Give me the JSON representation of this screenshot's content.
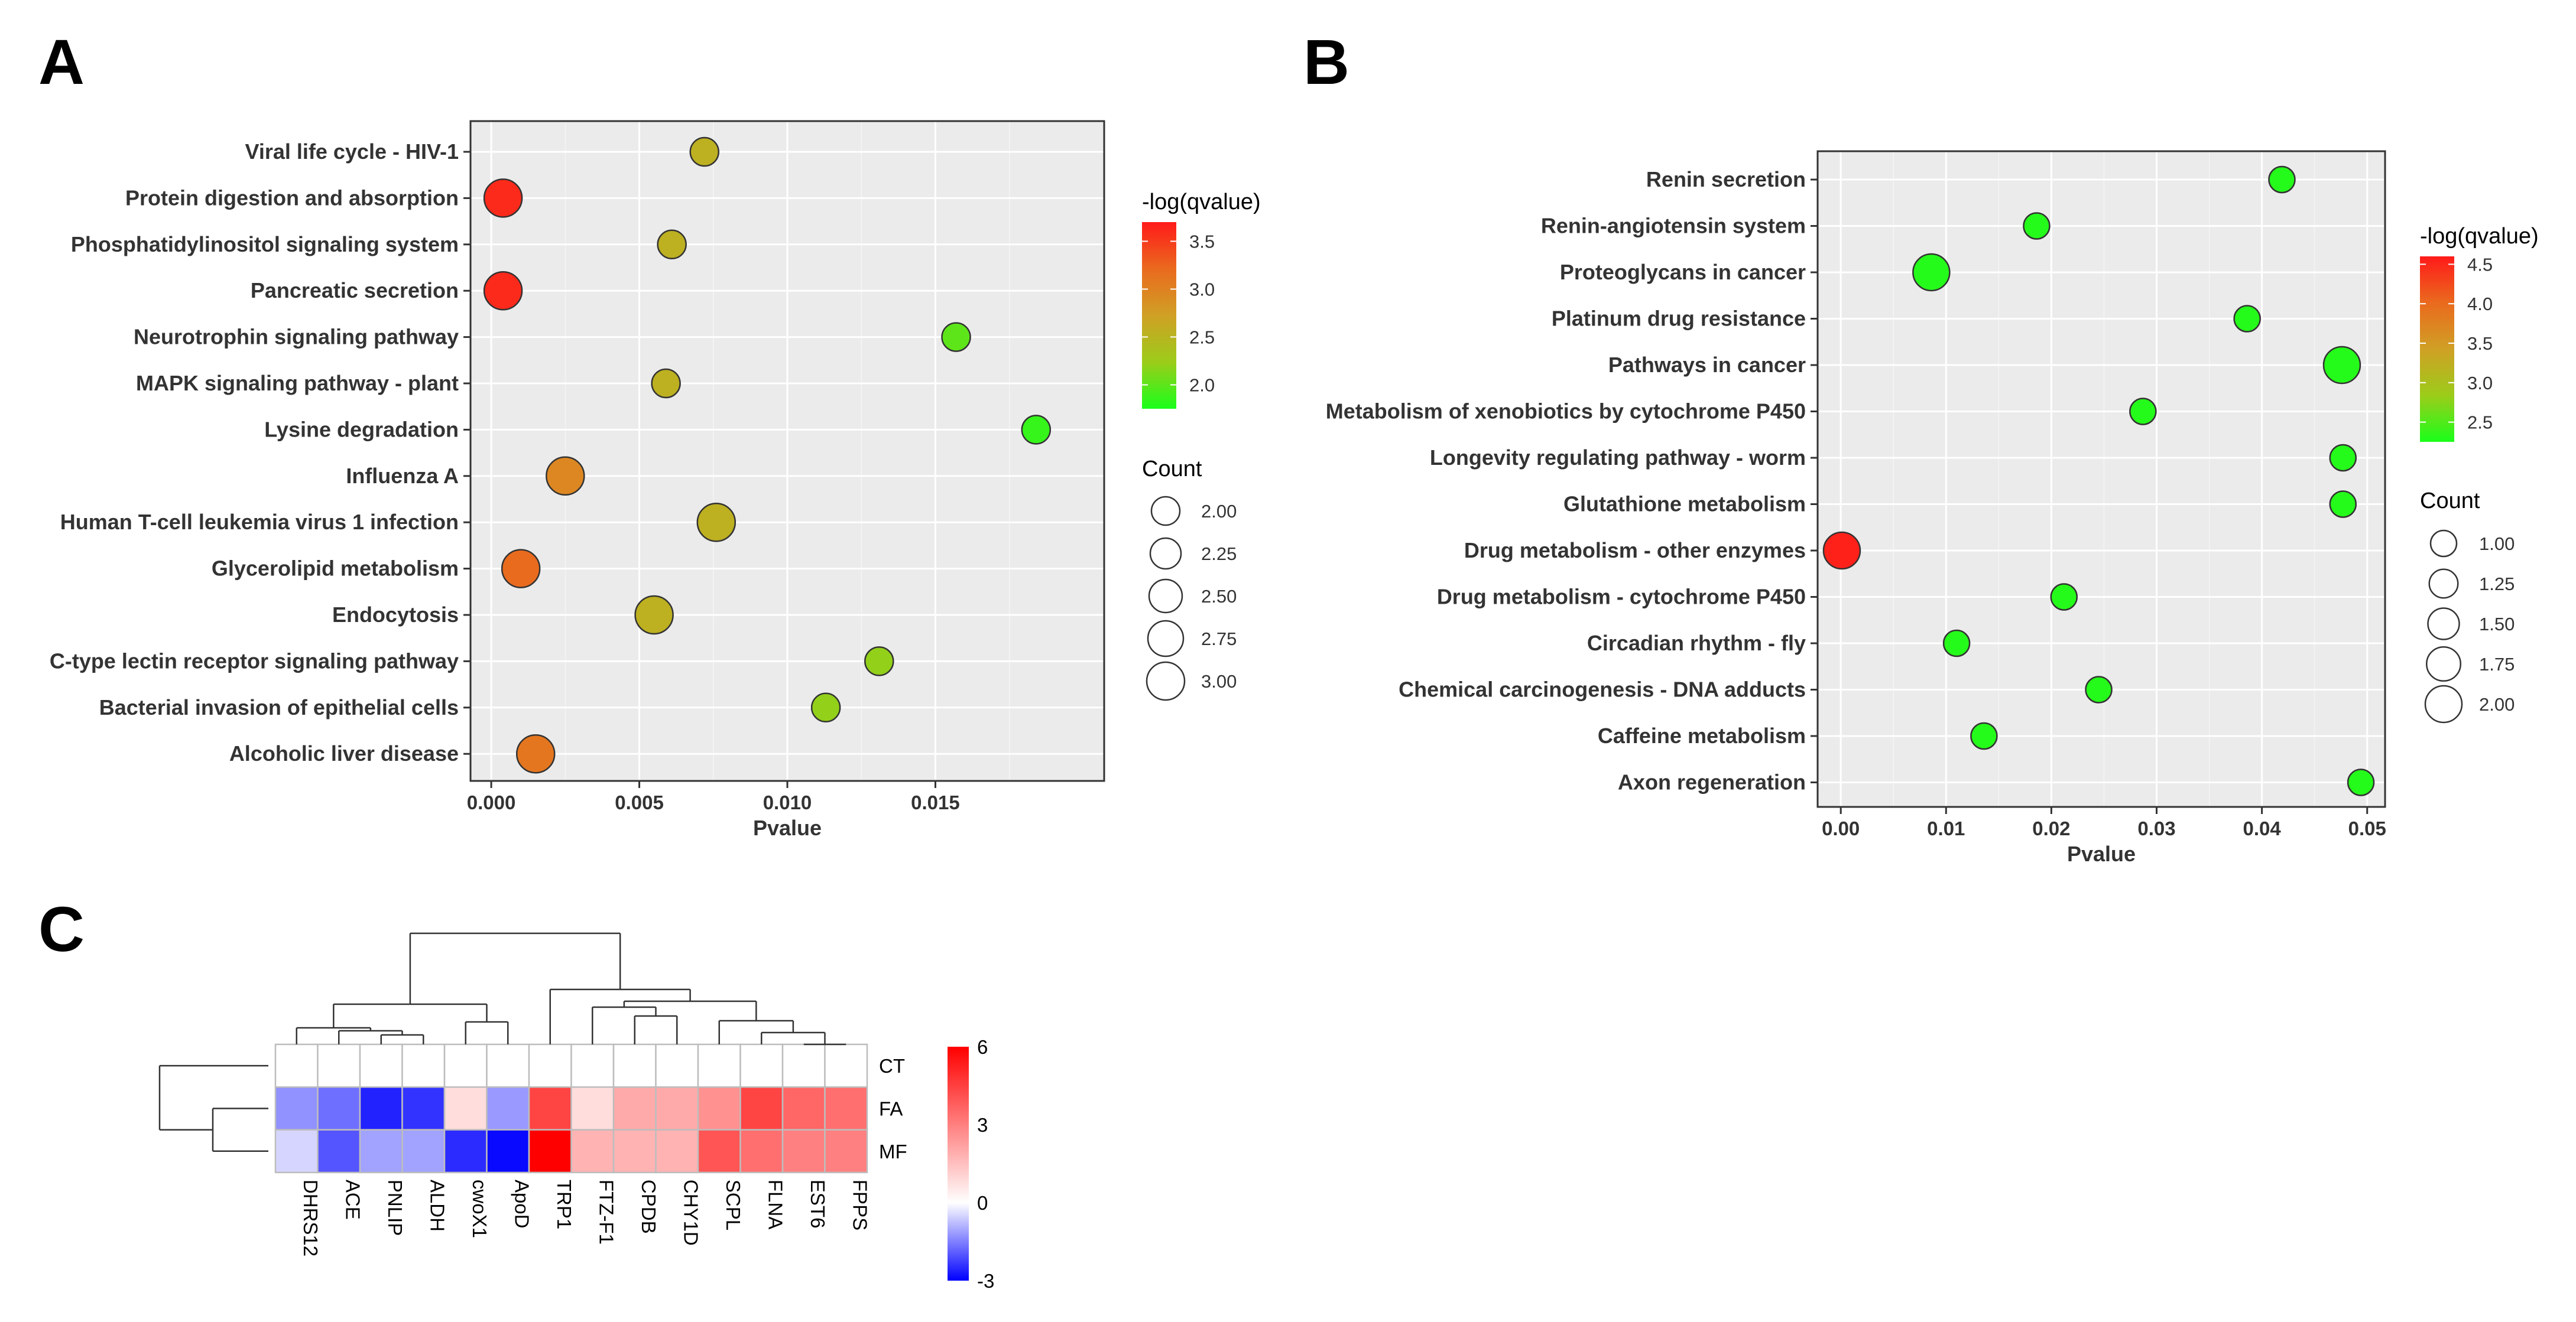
{
  "panel_letters": {
    "a": "A",
    "b": "B",
    "c": "C"
  },
  "chart_data": [
    {
      "id": "A",
      "type": "scatter",
      "xlabel": "Pvalue",
      "xlim": [
        -0.0007,
        0.0207
      ],
      "x_ticks": [
        0,
        0.005,
        0.01,
        0.015
      ],
      "x_tick_labels": [
        "0.000",
        "0.005",
        "0.010",
        "0.015"
      ],
      "color_legend_title": "-log(qvalue)",
      "color_range": [
        1.75,
        3.7
      ],
      "color_ticks": [
        3.5,
        3.0,
        2.5,
        2.0
      ],
      "color_tick_labels": [
        "3.5",
        "3.0",
        "2.5",
        "2.0"
      ],
      "size_legend_title": "Count",
      "size_range": [
        2,
        3
      ],
      "size_ticks": [
        2,
        2.25,
        2.5,
        2.75,
        3
      ],
      "size_tick_labels": [
        "2.00",
        "2.25",
        "2.50",
        "2.75",
        "3.00"
      ],
      "categories": [
        "Viral life cycle - HIV-1",
        "Protein digestion and absorption",
        "Phosphatidylinositol signaling system",
        "Pancreatic secretion",
        "Neurotrophin signaling pathway",
        "MAPK signaling pathway - plant",
        "Lysine degradation",
        "Influenza A",
        "Human T-cell leukemia virus 1 infection",
        "Glycerolipid metabolism",
        "Endocytosis",
        "C-type lectin receptor signaling pathway",
        "Bacterial invasion of epithelial cells",
        "Alcoholic liver disease"
      ],
      "x": [
        0.0072,
        0.0004,
        0.0061,
        0.0004,
        0.0157,
        0.0059,
        0.0184,
        0.0025,
        0.0076,
        0.001,
        0.0055,
        0.0131,
        0.0113,
        0.0015
      ],
      "count": [
        2,
        3,
        2,
        3,
        2,
        2,
        2,
        3,
        3,
        3,
        3,
        2,
        2,
        3
      ],
      "neglog_q": [
        2.55,
        3.6,
        2.55,
        3.6,
        2.0,
        2.55,
        1.85,
        2.95,
        2.55,
        3.2,
        2.55,
        2.2,
        2.2,
        3.1
      ]
    },
    {
      "id": "B",
      "type": "scatter",
      "xlabel": "Pvalue",
      "xlim": [
        -0.0022,
        0.0517
      ],
      "x_ticks": [
        0,
        0.01,
        0.02,
        0.03,
        0.04,
        0.05
      ],
      "x_tick_labels": [
        "0.00",
        "0.01",
        "0.02",
        "0.03",
        "0.04",
        "0.05"
      ],
      "color_legend_title": "-log(qvalue)",
      "color_range": [
        2.25,
        4.6
      ],
      "color_ticks": [
        4.5,
        4.0,
        3.5,
        3.0,
        2.5
      ],
      "color_tick_labels": [
        "4.5",
        "4.0",
        "3.5",
        "3.0",
        "2.5"
      ],
      "size_legend_title": "Count",
      "size_range": [
        1,
        2
      ],
      "size_ticks": [
        1,
        1.25,
        1.5,
        1.75,
        2
      ],
      "size_tick_labels": [
        "1.00",
        "1.25",
        "1.50",
        "1.75",
        "2.00"
      ],
      "categories": [
        "Renin secretion",
        "Renin-angiotensin system",
        "Proteoglycans in cancer",
        "Platinum drug resistance",
        "Pathways in cancer",
        "Metabolism of xenobiotics by cytochrome P450",
        "Longevity regulating pathway - worm",
        "Glutathione metabolism",
        "Drug metabolism - other enzymes",
        "Drug metabolism - cytochrome P450",
        "Circadian rhythm - fly",
        "Chemical carcinogenesis - DNA adducts",
        "Caffeine metabolism",
        "Axon regeneration"
      ],
      "x": [
        0.0419,
        0.0186,
        0.0086,
        0.0386,
        0.0476,
        0.0287,
        0.0477,
        0.0477,
        0.0001,
        0.0212,
        0.011,
        0.0245,
        0.0136,
        0.0494
      ],
      "count": [
        1,
        1,
        2,
        1,
        2,
        1,
        1,
        1,
        2,
        1,
        1,
        1,
        1,
        1
      ],
      "neglog_q": [
        2.3,
        2.3,
        2.3,
        2.3,
        2.3,
        2.3,
        2.3,
        2.3,
        4.55,
        2.3,
        2.3,
        2.3,
        2.3,
        2.3
      ]
    },
    {
      "id": "C",
      "type": "heatmap",
      "columns": [
        "DHRS12",
        "ACE",
        "PNLIP",
        "ALDH",
        "cwoX1",
        "ApoD",
        "TRP1",
        "FTZ-F1",
        "CPDB",
        "CHY1D",
        "SCPL",
        "FLNA",
        "EST6",
        "FPPS"
      ],
      "rows": [
        "CT",
        "FA",
        "MF"
      ],
      "values": [
        [
          0,
          0,
          0,
          0,
          0,
          0,
          0,
          0,
          0,
          0,
          0,
          0,
          0,
          0
        ],
        [
          -1.3,
          -1.7,
          -2.6,
          -2.4,
          0.8,
          -1.2,
          4.4,
          0.8,
          2.0,
          2.0,
          2.6,
          4.4,
          3.6,
          3.4
        ],
        [
          -0.5,
          -2.0,
          -1.1,
          -1.1,
          -2.5,
          -2.9,
          6.0,
          1.8,
          1.8,
          1.8,
          4.0,
          3.4,
          3.0,
          3.0
        ]
      ],
      "color_range": [
        -3,
        6
      ],
      "colorbar_ticks": [
        6,
        3,
        0,
        -3
      ],
      "colorbar_tick_labels": [
        "6",
        "3",
        "0",
        "-3"
      ]
    }
  ]
}
